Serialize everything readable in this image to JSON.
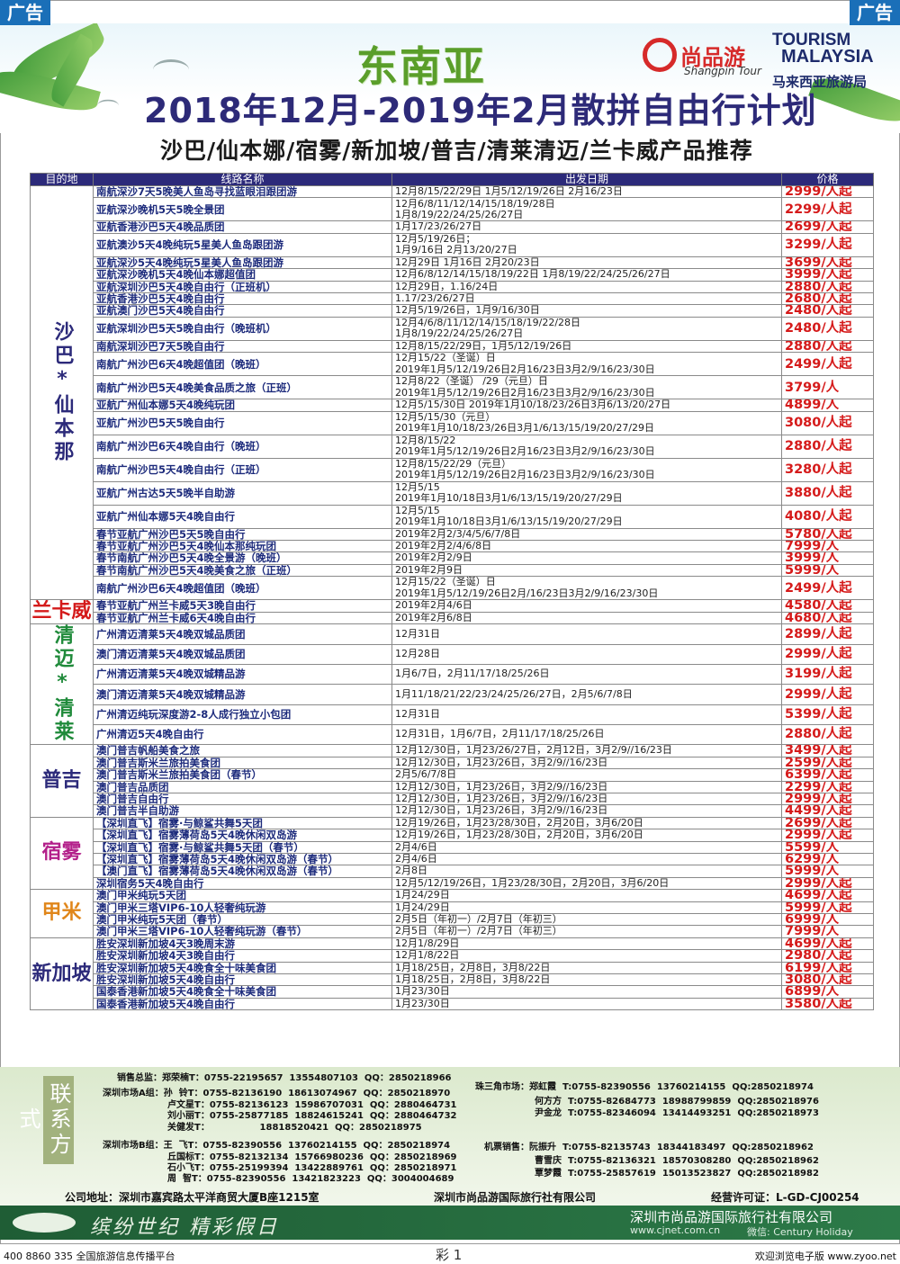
{
  "ad_tag": "广告",
  "header": {
    "region": "东南亚",
    "title": "2018年12月-2019年2月散拼自由行计划",
    "subtitle": "沙巴/仙本娜/宿雾/新加坡/普吉/清莱清迈/兰卡威产品推荐",
    "logo_sp_cn": "尚品游",
    "logo_sp_en": "Shangpin Tour",
    "logo_tm_1": "TOURISM",
    "logo_tm_2": "MALAYSIA",
    "logo_tm_3": "马来西亚旅游局"
  },
  "table": {
    "headers": [
      "目的地",
      "线路名称",
      "出发日期",
      "价格"
    ],
    "groups": [
      {
        "dest": "沙巴*仙本那",
        "color": "#2c2a7a",
        "rows": [
          {
            "route": "南航深沙7天5晚美人鱼岛寻找蓝眼泪跟团游",
            "date": "12月8/15/22/29日 1月5/12/19/26日 2月16/23日",
            "price": "2999/人起"
          },
          {
            "route": "亚航深沙晚机5天5晚全景团",
            "date": "12月6/8/11/12/14/15/18/19/28日\n1月8/19/22/24/25/26/27日",
            "price": "2299/人起"
          },
          {
            "route": "亚航香港沙巴5天4晚品质团",
            "date": "1月17/23/26/27日",
            "price": "2699/人起"
          },
          {
            "route": "亚航澳沙5天4晚纯玩5星美人鱼岛跟团游",
            "date": "12月5/19/26日；\n1月9/16日 2月13/20/27日",
            "price": "3299/人起"
          },
          {
            "route": "亚航深沙5天4晚纯玩5星美人鱼岛跟团游",
            "date": "12月29日 1月16日 2月20/23日",
            "price": "3699/人起"
          },
          {
            "route": "亚航深沙晚机5天4晚仙本娜超值团",
            "date": "12月6/8/12/14/15/18/19/22日 1月8/19/22/24/25/26/27日",
            "price": "3999/人起"
          },
          {
            "route": "亚航深圳沙巴5天4晚自由行（正班机）",
            "date": "12月29日，1.16/24日",
            "price": "2880/人起"
          },
          {
            "route": "亚航香港沙巴5天4晚自由行",
            "date": "1.17/23/26/27日",
            "price": "2680/人起"
          },
          {
            "route": "亚航澳门沙巴5天4晚自由行",
            "date": "12月5/19/26日，1月9/16/30日",
            "price": "2480/人起"
          },
          {
            "route": "亚航深圳沙巴5天5晚自由行（晚班机）",
            "date": "12月4/6/8/11/12/14/15/18/19/22/28日\n1月8/19/22/24/25/26/27日",
            "price": "2480/人起"
          },
          {
            "route": "南航深圳沙巴7天5晚自由行",
            "date": "12月8/15/22/29日，1月5/12/19/26日",
            "price": "2880/人起"
          },
          {
            "route": "南航广州沙巴6天4晚超值团（晚班）",
            "date": "12月15/22（圣诞）日\n2019年1月5/12/19/26日2月16/23日3月2/9/16/23/30日",
            "price": "2499/人起"
          },
          {
            "route": "南航广州沙巴5天4晚美食品质之旅（正班）",
            "date": "12月8/22（圣诞） /29（元旦）日\n2019年1月5/12/19/26日2月16/23日3月2/9/16/23/30日",
            "price": "3799/人"
          },
          {
            "route": "亚航广州仙本娜5天4晚纯玩团",
            "date": "12月5/15/30日 2019年1月10/18/23/26日3月6/13/20/27日",
            "price": "4899/人"
          },
          {
            "route": "亚航广州沙巴5天5晚自由行",
            "date": "12月5/15/30（元旦）\n2019年1月10/18/23/26日3月1/6/13/15/19/20/27/29日",
            "price": "3080/人起"
          },
          {
            "route": "南航广州沙巴6天4晚自由行（晚班）",
            "date": "12月8/15/22\n2019年1月5/12/19/26日2月16/23日3月2/9/16/23/30日",
            "price": "2880/人起"
          },
          {
            "route": "南航广州沙巴5天4晚自由行（正班）",
            "date": "12月8/15/22/29（元旦）\n2019年1月5/12/19/26日2月16/23日3月2/9/16/23/30日",
            "price": "3280/人起"
          },
          {
            "route": "亚航广州古达5天5晚半自助游",
            "date": "12月5/15\n2019年1月10/18日3月1/6/13/15/19/20/27/29日",
            "price": "3880/人起"
          },
          {
            "route": "亚航广州仙本娜5天4晚自由行",
            "date": "12月5/15\n2019年1月10/18日3月1/6/13/15/19/20/27/29日",
            "price": "4080/人起"
          },
          {
            "route": "春节亚航广州沙巴5天5晚自由行",
            "date": "2019年2月2/3/4/5/6/7/8日",
            "price": "5780/人起"
          },
          {
            "route": "春节亚航广州沙巴5天4晚仙本那纯玩团",
            "date": "2019年2月2/4/6/8日",
            "price": "7999/人"
          },
          {
            "route": "春节南航广州沙巴5天4晚全景游（晚班）",
            "date": "2019年2月2/9日",
            "price": "3999/人"
          },
          {
            "route": "春节南航广州沙巴5天4晚美食之旅（正班）",
            "date": "2019年2月9日",
            "price": "5999/人"
          },
          {
            "route": "南航广州沙巴6天4晚超值团（晚班）",
            "date": "12月15/22（圣诞）日\n2019年1月5/12/19/26日2月/16/23日3月2/9/16/23/30日",
            "price": "2499/人起"
          }
        ]
      },
      {
        "dest": "兰卡威",
        "color": "#d41a1a",
        "rows": [
          {
            "route": "春节亚航广州兰卡威5天3晚自由行",
            "date": "2019年2月4/6日",
            "price": "4580/人起"
          },
          {
            "route": "春节亚航广州兰卡威6天4晚自由行",
            "date": "2019年2月6/8日",
            "price": "4680/人起"
          }
        ]
      },
      {
        "dest": "清迈*清莱",
        "color": "#1f8a3a",
        "rows": [
          {
            "route": "广州清迈清莱5天4晚双城品质团",
            "date": "12月31日",
            "price": "2899/人起"
          },
          {
            "route": "澳门清迈清莱5天4晚双城品质团",
            "date": "12月28日",
            "price": "2999/人起"
          },
          {
            "route": "广州清迈清莱5天4晚双城精品游",
            "date": "1月6/7日，2月11/17/18/25/26日",
            "price": "3199/人起"
          },
          {
            "route": "澳门清迈清莱5天4晚双城精品游",
            "date": "1月11/18/21/22/23/24/25/26/27日，2月5/6/7/8日",
            "price": "2999/人起"
          },
          {
            "route": "广州清迈纯玩深度游2-8人成行独立小包团",
            "date": "12月31日",
            "price": "5399/人起"
          },
          {
            "route": "广州清迈5天4晚自由行",
            "date": "12月31日，1月6/7日，2月11/17/18/25/26日",
            "price": "2880/人起"
          }
        ]
      },
      {
        "dest": "普吉",
        "color": "#2c2a7a",
        "rows": [
          {
            "route": "澳门普吉帆船美食之旅",
            "date": "12月12/30日，1月23/26/27日，2月12日，3月2/9//16/23日",
            "price": "3499/人起"
          },
          {
            "route": "澳门普吉斯米兰旅拍美食团",
            "date": "12月12/30日，1月23/26日，3月2/9//16/23日",
            "price": "2599/人起"
          },
          {
            "route": "澳门普吉斯米兰旅拍美食团（春节）",
            "date": "2月5/6/7/8日",
            "price": "6399/人起"
          },
          {
            "route": "澳门普吉品质团",
            "date": "12月12/30日，1月23/26日，3月2/9//16/23日",
            "price": "2299/人起"
          },
          {
            "route": "澳门普吉自由行",
            "date": "12月12/30日，1月23/26日，3月2/9//16/23日",
            "price": "2999/人起"
          },
          {
            "route": "澳门普吉半自助游",
            "date": "12月12/30日，1月23/26日，3月2/9//16/23日",
            "price": "4499/人起"
          }
        ]
      },
      {
        "dest": "宿雾",
        "color": "#b3208a",
        "rows": [
          {
            "route": "【深圳直飞】宿雾·与鲸鲨共舞5天团",
            "date": "12月19/26日，1月23/28/30日，2月20日，3月6/20日",
            "price": "2699/人起"
          },
          {
            "route": "【深圳直飞】宿雾薄荷岛5天4晚休闲双岛游",
            "date": "12月19/26日，1月23/28/30日，2月20日，3月6/20日",
            "price": "2999/人起"
          },
          {
            "route": "【深圳直飞】宿雾·与鲸鲨共舞5天团（春节）",
            "date": "2月4/6日",
            "price": "5599/人"
          },
          {
            "route": "【深圳直飞】宿雾薄荷岛5天4晚休闲双岛游（春节）",
            "date": "2月4/6日",
            "price": "6299/人"
          },
          {
            "route": "【澳门直飞】宿雾薄荷岛5天4晚休闲双岛游（春节）",
            "date": "2月8日",
            "price": "5999/人"
          },
          {
            "route": "深圳宿务5天4晚自由行",
            "date": "12月5/12/19/26日，1月23/28/30日，2月20日，3月6/20日",
            "price": "2999/人起"
          }
        ]
      },
      {
        "dest": "甲米",
        "color": "#e0861a",
        "rows": [
          {
            "route": "澳门甲米纯玩5天团",
            "date": "1月24/29日",
            "price": "4699/人起"
          },
          {
            "route": "澳门甲米三塔VIP6-10人轻奢纯玩游",
            "date": "1月24/29日",
            "price": "5999/人起"
          },
          {
            "route": "澳门甲米纯玩5天团（春节）",
            "date": "2月5日（年初一）/2月7日（年初三）",
            "price": "6999/人"
          },
          {
            "route": "澳门甲米三塔VIP6-10人轻奢纯玩游（春节）",
            "date": "2月5日（年初一）/2月7日（年初三）",
            "price": "7999/人"
          }
        ]
      },
      {
        "dest": "新加坡",
        "color": "#2c2a7a",
        "rows": [
          {
            "route": "胜安深圳新加坡4天3晚周末游",
            "date": "12月1/8/29日",
            "price": "4699/人起"
          },
          {
            "route": "胜安深圳新加坡4天3晚自由行",
            "date": "12月1/8/22日",
            "price": "2980/人起"
          },
          {
            "route": "胜安深圳新加坡5天4晚食全十味美食团",
            "date": "1月18/25日，2月8日，3月8/22日",
            "price": "6199/人起"
          },
          {
            "route": "胜安深圳新加坡5天4晚自由行",
            "date": "1月18/25日，2月8日，3月8/22日",
            "price": "3080/人起"
          },
          {
            "route": "国泰香港新加坡5天4晚食全十味美食团",
            "date": "1月23/30日",
            "price": "6899/人"
          },
          {
            "route": "国泰香港新加坡5天4晚自由行",
            "date": "1月23/30日",
            "price": "3580/人起"
          }
        ]
      }
    ]
  },
  "contact": {
    "label": "联系方式",
    "left_lines": [
      "销售总监：郑荣楠T：0755-22195657  13554807103  QQ：2850218966",
      "深圳市场A组：孙  铃T：0755-82136190  18613074967  QQ：2850218970",
      "卢文星T：0755-82136123  15986707031  QQ：2880464731",
      "刘小丽T：0755-25877185  18824615241  QQ：2880464732",
      "关健发T：                18818520421  QQ：2850218975",
      "深圳市场B组：王  飞T：0755-82390556  13760214155  QQ：2850218974",
      "丘国标T：0755-82132134  15766980236  QQ：2850218969",
      "石小飞T：0755-25199394  13422889761  QQ：2850218971",
      "周  智T：0755-82390556  13421823223  QQ：3004004689"
    ],
    "right_lines": [
      "珠三角市场：郑虹霞  T:0755-82390556  13760214155  QQ:2850218974",
      "何方方  T:0755-82684773  18988799859  QQ:2850218976",
      "尹金龙  T:0755-82346094  13414493251  QQ:2850218973",
      "机票销售：阮振升  T:0755-82135743  18344183497  QQ:2850218962",
      "曹雪庆  T:0755-82136321  18570308280  QQ:2850218962",
      "覃梦霞  T:0755-25857619  15013523827  QQ:2850218982"
    ],
    "address": "公司地址：深圳市嘉宾路太平洋商贸大厦B座1215室",
    "company": "深圳市尚品游国际旅行社有限公司",
    "license": "经营许可证：L-GD-CJ00254"
  },
  "banner": {
    "slogan": "缤纷世纪  精彩假日",
    "company": "深圳市尚品游国际旅行社有限公司",
    "web": "www.cjnet.com.cn",
    "wechat": "微信: Century Holiday"
  },
  "footer": {
    "left": "400 8860 335  全国旅游信息传播平台",
    "page": "彩 1",
    "right": "欢迎浏览电子版 www.zyoo.net"
  }
}
